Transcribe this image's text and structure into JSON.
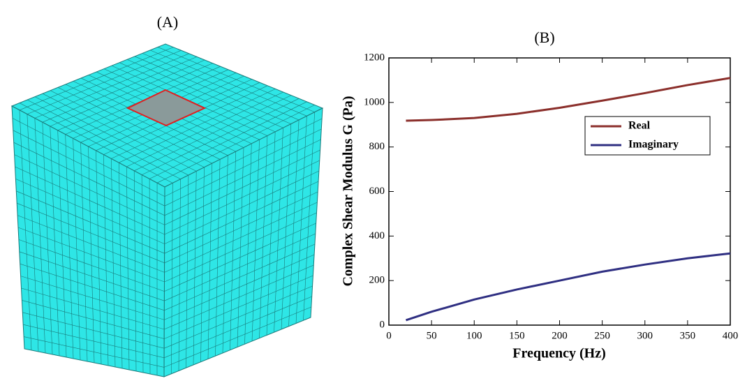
{
  "panel_a": {
    "label": "(A)"
  },
  "chart_data": {
    "type": "line",
    "title": "(B)",
    "x_label": "Frequency (Hz)",
    "y_label": "Complex Shear Modulus G (Pa)",
    "x": [
      20,
      50,
      100,
      150,
      200,
      250,
      300,
      350,
      400
    ],
    "series": [
      {
        "name": "Real",
        "color": "#8b2f2b",
        "values": [
          918,
          921,
          930,
          949,
          976,
          1008,
          1042,
          1078,
          1110
        ]
      },
      {
        "name": "Imaginary",
        "color": "#2f2f82",
        "values": [
          22,
          60,
          115,
          160,
          200,
          240,
          272,
          300,
          322
        ]
      }
    ],
    "xlim": [
      0,
      400
    ],
    "xticks": [
      0,
      50,
      100,
      150,
      200,
      250,
      300,
      350,
      400
    ],
    "ylim": [
      0,
      1200
    ],
    "yticks": [
      0,
      200,
      400,
      600,
      800,
      1000,
      1200
    ],
    "grid": false,
    "legend": "right"
  }
}
